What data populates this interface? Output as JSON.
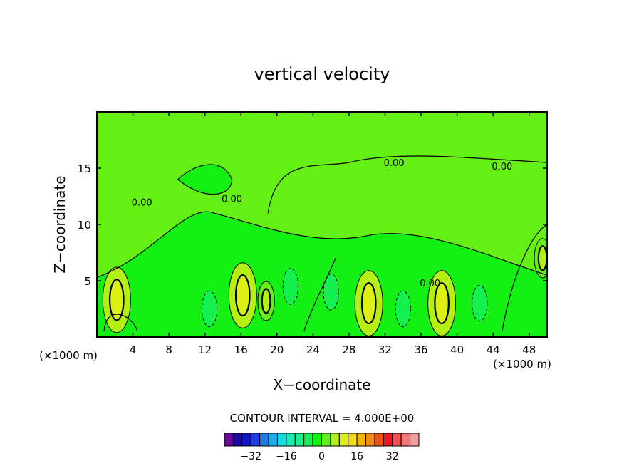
{
  "chart_data": {
    "type": "heatmap",
    "title": "vertical velocity",
    "xlabel": "X−coordinate",
    "ylabel": "Z−coordinate",
    "x_unit_left": "(×1000 m)",
    "x_unit_right": "(×1000 m)",
    "xlim": [
      0,
      50
    ],
    "ylim": [
      0,
      20
    ],
    "xticks": [
      4,
      8,
      12,
      16,
      20,
      24,
      28,
      32,
      36,
      40,
      44,
      48
    ],
    "yticks": [
      5,
      10,
      15
    ],
    "contour_labels": [
      {
        "text": "0.00",
        "x": 33,
        "y": 15.5
      },
      {
        "text": "0.00",
        "x": 45,
        "y": 15.2
      },
      {
        "text": "0.00",
        "x": 15,
        "y": 12.3
      },
      {
        "text": "0.00",
        "x": 5,
        "y": 12
      },
      {
        "text": "0.00",
        "x": 37,
        "y": 4.8
      }
    ],
    "positive_cells": [
      {
        "x": 2.2,
        "z": 3.3,
        "peak": 12
      },
      {
        "x": 16.2,
        "z": 3.7,
        "peak": 14
      },
      {
        "x": 30.2,
        "z": 3.0,
        "peak": 14
      },
      {
        "x": 38.3,
        "z": 3.0,
        "peak": 14
      },
      {
        "x": 18.8,
        "z": 3.2,
        "peak": 6
      },
      {
        "x": 49.5,
        "z": 7.0,
        "peak": 6
      }
    ],
    "negative_cells": [
      {
        "x": 12.5,
        "z": 2.5,
        "peak": -8
      },
      {
        "x": 21.5,
        "z": 4.5,
        "peak": -6
      },
      {
        "x": 26.0,
        "z": 4.0,
        "peak": -6
      },
      {
        "x": 34.0,
        "z": 2.5,
        "peak": -6
      },
      {
        "x": 42.5,
        "z": 3.0,
        "peak": -6
      }
    ],
    "contour_interval_text": "CONTOUR INTERVAL = 4.000E+00",
    "colorbar": {
      "colors": [
        "#6a0a9a",
        "#1c0a9a",
        "#1414c8",
        "#1f3ce6",
        "#1e7ae6",
        "#1eaee6",
        "#14dcdc",
        "#14f0b4",
        "#14f08c",
        "#14f050",
        "#14f014",
        "#64f014",
        "#b4f014",
        "#dcf014",
        "#f0dc14",
        "#f0b414",
        "#f08c14",
        "#f05014",
        "#f01414",
        "#f05050",
        "#f07878",
        "#f0a0a0"
      ],
      "labels": [
        "−32",
        "−16",
        "0",
        "16",
        "32"
      ],
      "label_values": [
        -32,
        -16,
        0,
        16,
        32
      ],
      "vmin": -44,
      "vmax": 44,
      "step": 4
    }
  }
}
